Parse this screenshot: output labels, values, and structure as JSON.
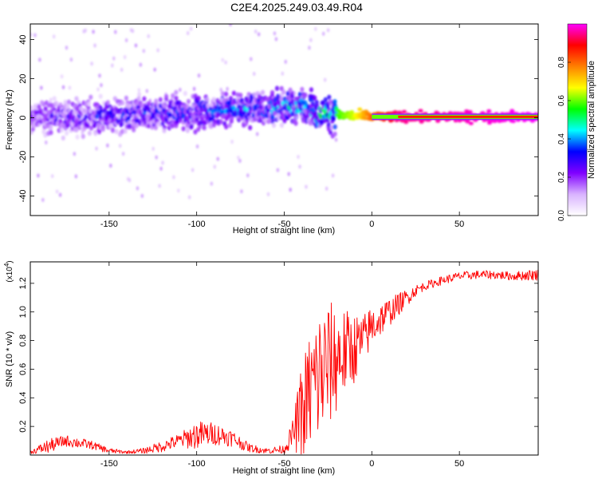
{
  "title": "C2E4.2025.249.03.49.R04",
  "chart_data": [
    {
      "type": "heatmap",
      "xlabel": "Height of straight line (km)",
      "ylabel": "Frequency (Hz)",
      "xlim": [
        -195,
        95
      ],
      "ylim": [
        -50,
        48
      ],
      "xticks": [
        -150,
        -100,
        -50,
        0,
        50
      ],
      "yticks": [
        -40,
        -20,
        0,
        20,
        40
      ],
      "colorbar": {
        "label": "Normalized spectral amplitude",
        "range": [
          0,
          1
        ],
        "ticks": [
          "0.0",
          "0.2",
          "0.4",
          "0.6",
          "0.8"
        ],
        "colors": [
          "#ffffff",
          "#d9b3ff",
          "#8000ff",
          "#0000ff",
          "#00ffff",
          "#00ff00",
          "#ffff00",
          "#ff8000",
          "#ff0000",
          "#ff00ff"
        ]
      },
      "ridge": [
        {
          "x": -190,
          "freq": 0,
          "amp": 0.25
        },
        {
          "x": -150,
          "freq": 1,
          "amp": 0.3
        },
        {
          "x": -100,
          "freq": 3,
          "amp": 0.35
        },
        {
          "x": -60,
          "freq": 5,
          "amp": 0.4
        },
        {
          "x": -40,
          "freq": 6,
          "amp": 0.45
        },
        {
          "x": -30,
          "freq": 2,
          "amp": 0.5
        },
        {
          "x": -10,
          "freq": 1,
          "amp": 0.65
        },
        {
          "x": 0,
          "freq": 0.5,
          "amp": 0.8
        },
        {
          "x": 15,
          "freq": 0.5,
          "amp": 0.95
        },
        {
          "x": 93,
          "freq": 0.5,
          "amp": 1.0
        }
      ]
    },
    {
      "type": "line",
      "xlabel": "Height of straight line (km)",
      "ylabel": "SNR (10 * v/v)",
      "yscale_label": "(x10",
      "yscale_exp": "4",
      "yscale_close": ")",
      "xlim": [
        -195,
        95
      ],
      "ylim": [
        0,
        1.35
      ],
      "xticks": [
        -150,
        -100,
        -50,
        0,
        50
      ],
      "yticks": [
        0.2,
        0.4,
        0.6,
        0.8,
        1.0,
        1.2
      ],
      "color": "#ff0000",
      "series": [
        {
          "x": [
            -195,
            -185,
            -175,
            -170,
            -160,
            -150,
            -140,
            -130,
            -120,
            -110,
            -100,
            -90,
            -80,
            -70,
            -60,
            -50,
            -45,
            -40,
            -35,
            -30,
            -25,
            -20,
            -15,
            -10,
            -5,
            0,
            5,
            10,
            15,
            20,
            25,
            30,
            40,
            50,
            60,
            70,
            80,
            93
          ],
          "y": [
            0.02,
            0.06,
            0.1,
            0.09,
            0.07,
            0.03,
            0.02,
            0.03,
            0.06,
            0.1,
            0.14,
            0.15,
            0.12,
            0.05,
            0.03,
            0.04,
            0.15,
            0.3,
            0.45,
            0.55,
            0.62,
            0.68,
            0.72,
            0.75,
            0.8,
            0.9,
            0.95,
            1.0,
            1.05,
            1.1,
            1.15,
            1.18,
            1.22,
            1.25,
            1.26,
            1.26,
            1.25,
            1.26
          ],
          "noise": [
            0.01,
            0.05,
            0.04,
            0.04,
            0.03,
            0.02,
            0.01,
            0.02,
            0.04,
            0.05,
            0.1,
            0.08,
            0.06,
            0.03,
            0.02,
            0.03,
            0.1,
            0.35,
            0.45,
            0.5,
            0.45,
            0.4,
            0.3,
            0.25,
            0.18,
            0.15,
            0.12,
            0.1,
            0.08,
            0.06,
            0.04,
            0.03,
            0.03,
            0.03,
            0.03,
            0.03,
            0.03,
            0.04
          ]
        }
      ]
    }
  ]
}
